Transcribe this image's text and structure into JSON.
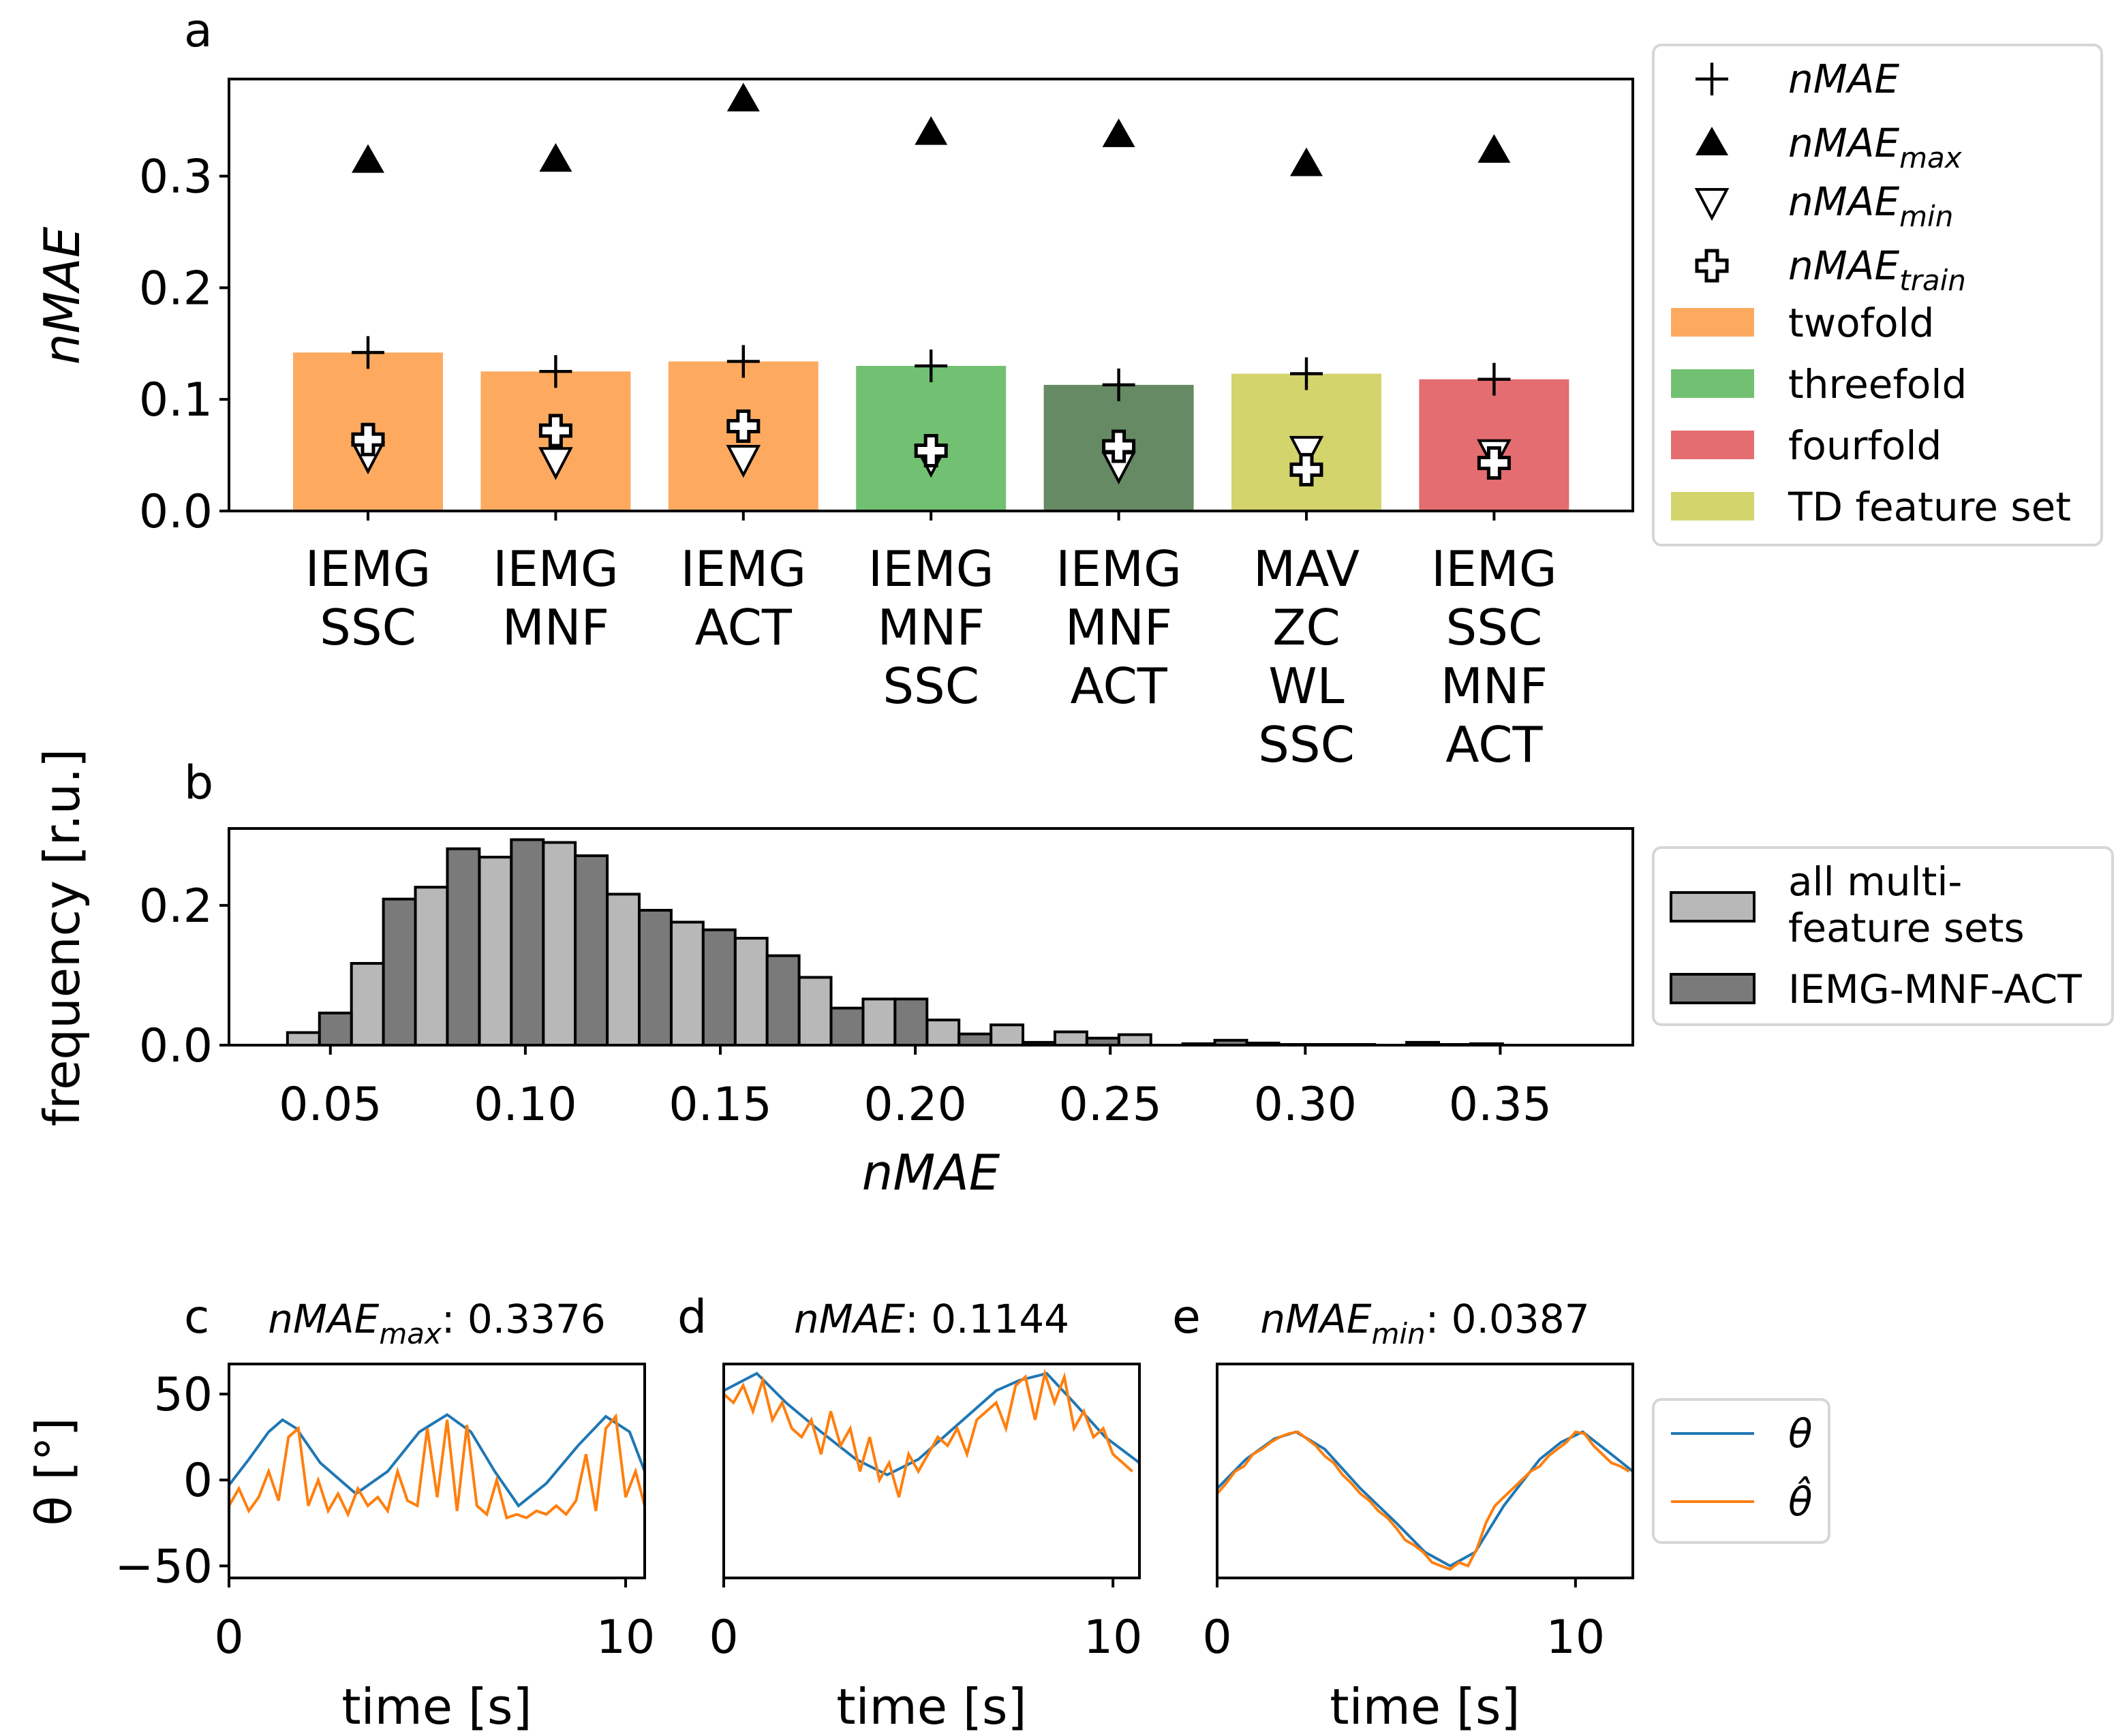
{
  "chart_data": [
    {
      "panel": "a",
      "type": "bar",
      "ylabel": "nMAE",
      "ylim": [
        0,
        0.387
      ],
      "yticks": [
        "0.0",
        "0.1",
        "0.2",
        "0.3"
      ],
      "yticks_values": [
        0,
        0.1,
        0.2,
        0.3
      ],
      "categories": [
        [
          "IEMG",
          "SSC"
        ],
        [
          "IEMG",
          "MNF"
        ],
        [
          "IEMG",
          "ACT"
        ],
        [
          "IEMG",
          "MNF",
          "SSC"
        ],
        [
          "IEMG",
          "MNF",
          "ACT"
        ],
        [
          "MAV",
          "ZC",
          "WL",
          "SSC"
        ],
        [
          "IEMG",
          "SSC",
          "MNF",
          "ACT"
        ]
      ],
      "bar_group": [
        "twofold",
        "twofold",
        "twofold",
        "threefold",
        "threefold_dark",
        "td",
        "fourfold"
      ],
      "values": [
        0.142,
        0.125,
        0.134,
        0.13,
        0.113,
        0.123,
        0.118
      ],
      "nmae": [
        0.142,
        0.125,
        0.134,
        0.13,
        0.113,
        0.123,
        0.118
      ],
      "nmae_max": [
        0.314,
        0.315,
        0.369,
        0.339,
        0.337,
        0.311,
        0.323
      ],
      "nmae_min": [
        0.05,
        0.045,
        0.047,
        0.047,
        0.041,
        0.055,
        0.052
      ],
      "nmae_train": [
        0.064,
        0.072,
        0.076,
        0.054,
        0.058,
        0.037,
        0.043
      ],
      "colors": {
        "twofold": "#fdaa60",
        "threefold": "#72c172",
        "threefold_dark": "#668a63",
        "td": "#d3d46c",
        "fourfold": "#e36d70"
      },
      "legend": [
        {
          "kind": "plus",
          "main": "nMAE",
          "sub": ""
        },
        {
          "kind": "tri-up",
          "main": "nMAE",
          "sub": "max"
        },
        {
          "kind": "tri-down",
          "main": "nMAE",
          "sub": "min"
        },
        {
          "kind": "thick-plus",
          "main": "nMAE",
          "sub": "train"
        },
        {
          "kind": "patch",
          "color": "#fdaa60",
          "main": "twofold",
          "sub": ""
        },
        {
          "kind": "patch",
          "color": "#72c172",
          "main": "threefold",
          "sub": ""
        },
        {
          "kind": "patch",
          "color": "#e36d70",
          "main": "fourfold",
          "sub": ""
        },
        {
          "kind": "patch",
          "color": "#d3d46c",
          "main": "TD feature set",
          "sub": ""
        }
      ]
    },
    {
      "panel": "b",
      "type": "bar",
      "xlabel": "nMAE",
      "ylabel": "frequency [r.u.]",
      "xlim": [
        0.024,
        0.384
      ],
      "ylim": [
        0,
        0.31
      ],
      "xticks": [
        "0.05",
        "0.10",
        "0.15",
        "0.20",
        "0.25",
        "0.30",
        "0.35"
      ],
      "xticks_values": [
        0.05,
        0.1,
        0.15,
        0.2,
        0.25,
        0.3,
        0.35
      ],
      "yticks": [
        "0.0",
        "0.2"
      ],
      "yticks_values": [
        0,
        0.2
      ],
      "bin_start": 0.039,
      "bin_width": 0.0164,
      "series": [
        {
          "name": "all multi-feature sets",
          "legend_lines": [
            "all multi-",
            "feature sets"
          ],
          "color": "#b8b8b8",
          "values": [
            0.018,
            0.117,
            0.226,
            0.269,
            0.29,
            0.216,
            0.176,
            0.153,
            0.097,
            0.066,
            0.036,
            0.029,
            0.019,
            0.015,
            0.002,
            0.003,
            0.001,
            0.0,
            0.001
          ]
        },
        {
          "name": "IEMG-MNF-ACT",
          "legend_lines": [
            "IEMG-MNF-ACT"
          ],
          "color": "#7a7a7a",
          "values": [
            0.046,
            0.209,
            0.281,
            0.294,
            0.271,
            0.193,
            0.165,
            0.128,
            0.053,
            0.066,
            0.016,
            0.004,
            0.01,
            0.0,
            0.007,
            0.001,
            0.001,
            0.004,
            0.002
          ]
        }
      ]
    },
    {
      "panel": "c",
      "type": "line",
      "title_main": "nMAE",
      "title_sub": "max",
      "title_value": ": 0.3376",
      "xlabel": "time [s]",
      "ylabel": "θ [°]",
      "xlim": [
        0,
        10.48
      ],
      "ylim": [
        -57,
        67.5
      ],
      "xticks": [
        "0",
        "10"
      ],
      "xticks_values": [
        0,
        10
      ],
      "yticks": [
        "50",
        "0",
        "−50"
      ],
      "yticks_values": [
        50,
        0,
        -50
      ],
      "theta": {
        "t": [
          0,
          0.5,
          1,
          1.35,
          1.7,
          2.3,
          3.2,
          4,
          4.8,
          5.5,
          6.1,
          6.7,
          7.3,
          8,
          8.8,
          9.5,
          10.1,
          10.48
        ],
        "v": [
          -3,
          12,
          28,
          35,
          30,
          10,
          -8,
          5,
          28,
          38,
          28,
          5,
          -15,
          -2,
          20,
          37,
          28,
          5
        ]
      },
      "theta_hat": {
        "t0": 0,
        "dt": 0.25,
        "v": [
          -15,
          -5,
          -18,
          -10,
          5,
          -12,
          25,
          30,
          -15,
          0,
          -18,
          -8,
          -20,
          -5,
          -15,
          -10,
          -18,
          5,
          -12,
          -15,
          30,
          -10,
          35,
          -18,
          32,
          -15,
          -20,
          0,
          -22,
          -20,
          -22,
          -18,
          -20,
          -15,
          -20,
          -12,
          15,
          -18,
          30,
          37,
          -10,
          5,
          -15
        ]
      }
    },
    {
      "panel": "d",
      "type": "line",
      "title_main": "nMAE",
      "title_sub": "",
      "title_value": ": 0.1144",
      "xlabel": "time [s]",
      "xlim": [
        0,
        10.68
      ],
      "ylim": [
        -57,
        67.5
      ],
      "xticks": [
        "0",
        "10"
      ],
      "xticks_values": [
        0,
        10
      ],
      "theta": {
        "t": [
          0,
          0.85,
          1.6,
          2.5,
          3.4,
          4.2,
          5,
          6,
          7,
          7.6,
          8.3,
          9,
          9.8,
          10.68
        ],
        "v": [
          52,
          62,
          45,
          28,
          12,
          3,
          12,
          32,
          52,
          58,
          62,
          45,
          25,
          10
        ]
      },
      "theta_hat": {
        "t0": 0,
        "dt": 0.25,
        "v": [
          50,
          45,
          55,
          40,
          58,
          35,
          45,
          30,
          25,
          35,
          15,
          40,
          20,
          30,
          5,
          25,
          0,
          10,
          -10,
          15,
          5,
          15,
          25,
          20,
          30,
          15,
          35,
          40,
          45,
          30,
          55,
          60,
          35,
          62,
          45,
          60,
          30,
          40,
          25,
          30,
          15,
          10,
          5
        ]
      }
    },
    {
      "panel": "e",
      "type": "line",
      "title_main": "nMAE",
      "title_sub": "min",
      "title_value": ": 0.0387",
      "xlabel": "time [s]",
      "xlim": [
        0,
        11.6
      ],
      "ylim": [
        -57,
        67.5
      ],
      "xticks": [
        "0",
        "10"
      ],
      "xticks_values": [
        0,
        10
      ],
      "theta": {
        "t": [
          0,
          0.8,
          1.6,
          2.2,
          3,
          4,
          5,
          5.8,
          6.5,
          7.2,
          8,
          9,
          9.6,
          10.2,
          11,
          11.6
        ],
        "v": [
          -5,
          12,
          24,
          28,
          18,
          -5,
          -25,
          -42,
          -50,
          -42,
          -15,
          12,
          22,
          28,
          15,
          5
        ]
      },
      "theta_hat": {
        "t0": 0,
        "dt": 0.25,
        "v": [
          -8,
          -2,
          5,
          8,
          15,
          18,
          22,
          25,
          27,
          28,
          24,
          20,
          14,
          10,
          3,
          -2,
          -8,
          -12,
          -18,
          -22,
          -28,
          -35,
          -38,
          -42,
          -48,
          -50,
          -52,
          -48,
          -50,
          -40,
          -25,
          -15,
          -10,
          -5,
          0,
          5,
          8,
          14,
          18,
          22,
          28,
          27,
          20,
          15,
          10,
          8,
          5
        ]
      },
      "colors": {
        "theta": "#1f77b4",
        "theta_hat": "#ff7f0e"
      }
    }
  ],
  "panel_letters": [
    "a",
    "b",
    "c",
    "d",
    "e"
  ],
  "time_legend": [
    "θ",
    "θ̂"
  ]
}
